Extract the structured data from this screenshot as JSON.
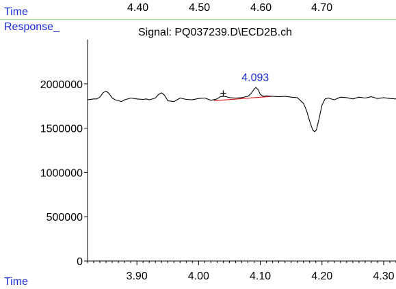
{
  "header": {
    "top_time_label": "Time",
    "top_ticks": [
      "4.40",
      "4.50",
      "4.60",
      "4.70"
    ],
    "response_label": "Response_",
    "signal_title": "Signal: PQ037239.D\\ECD2B.ch"
  },
  "colors": {
    "axis_label_blue": "#1a2bd8",
    "trace": "#000000",
    "baseline": "#e01010",
    "peak_label": "#1a2bd8",
    "separator": "#9be39b"
  },
  "chart_data": {
    "type": "line",
    "title": "Signal: PQ037239.D\\ECD2B.ch",
    "xlabel": "Time",
    "ylabel": "Response_",
    "xlim": [
      3.82,
      4.32
    ],
    "ylim": [
      0,
      2500000
    ],
    "x_ticks": [
      "3.90",
      "4.00",
      "4.10",
      "4.20",
      "4.30"
    ],
    "y_ticks": [
      "0",
      "500000",
      "1000000",
      "1500000",
      "2000000"
    ],
    "series": [
      {
        "x": [
          3.82,
          3.83,
          3.835,
          3.84,
          3.845,
          3.85,
          3.855,
          3.86,
          3.865,
          3.87,
          3.875,
          3.88,
          3.89,
          3.9,
          3.91,
          3.915,
          3.92,
          3.93,
          3.935,
          3.94,
          3.945,
          3.95,
          3.96,
          3.965,
          3.97,
          3.98,
          3.99,
          4.0,
          4.01,
          4.02,
          4.03,
          4.035,
          4.04,
          4.045,
          4.05,
          4.06,
          4.07,
          4.08,
          4.085,
          4.09,
          4.093,
          4.097,
          4.1,
          4.105,
          4.11,
          4.12,
          4.13,
          4.14,
          4.15,
          4.16,
          4.17,
          4.175,
          4.18,
          4.185,
          4.188,
          4.191,
          4.195,
          4.2,
          4.205,
          4.21,
          4.22,
          4.23,
          4.24,
          4.25,
          4.26,
          4.27,
          4.28,
          4.29,
          4.3,
          4.31,
          4.32
        ],
        "y": [
          1820000,
          1830000,
          1830000,
          1850000,
          1900000,
          1920000,
          1890000,
          1840000,
          1820000,
          1810000,
          1800000,
          1820000,
          1840000,
          1830000,
          1825000,
          1830000,
          1820000,
          1840000,
          1880000,
          1900000,
          1870000,
          1810000,
          1800000,
          1820000,
          1840000,
          1825000,
          1820000,
          1835000,
          1840000,
          1815000,
          1830000,
          1855000,
          1860000,
          1855000,
          1845000,
          1840000,
          1845000,
          1860000,
          1890000,
          1940000,
          1960000,
          1930000,
          1880000,
          1860000,
          1865000,
          1860000,
          1855000,
          1860000,
          1850000,
          1845000,
          1780000,
          1700000,
          1580000,
          1480000,
          1460000,
          1480000,
          1600000,
          1760000,
          1830000,
          1840000,
          1820000,
          1850000,
          1845000,
          1830000,
          1850000,
          1840000,
          1855000,
          1835000,
          1845000,
          1835000,
          1830000
        ]
      }
    ],
    "baseline_segment": {
      "x": [
        4.025,
        4.12
      ],
      "y": [
        1810000,
        1860000
      ]
    },
    "annotations": [
      {
        "text": "4.093",
        "x": 4.093,
        "y": 2080000
      },
      {
        "text": "+",
        "x": 4.04,
        "y": 1900000
      }
    ]
  }
}
